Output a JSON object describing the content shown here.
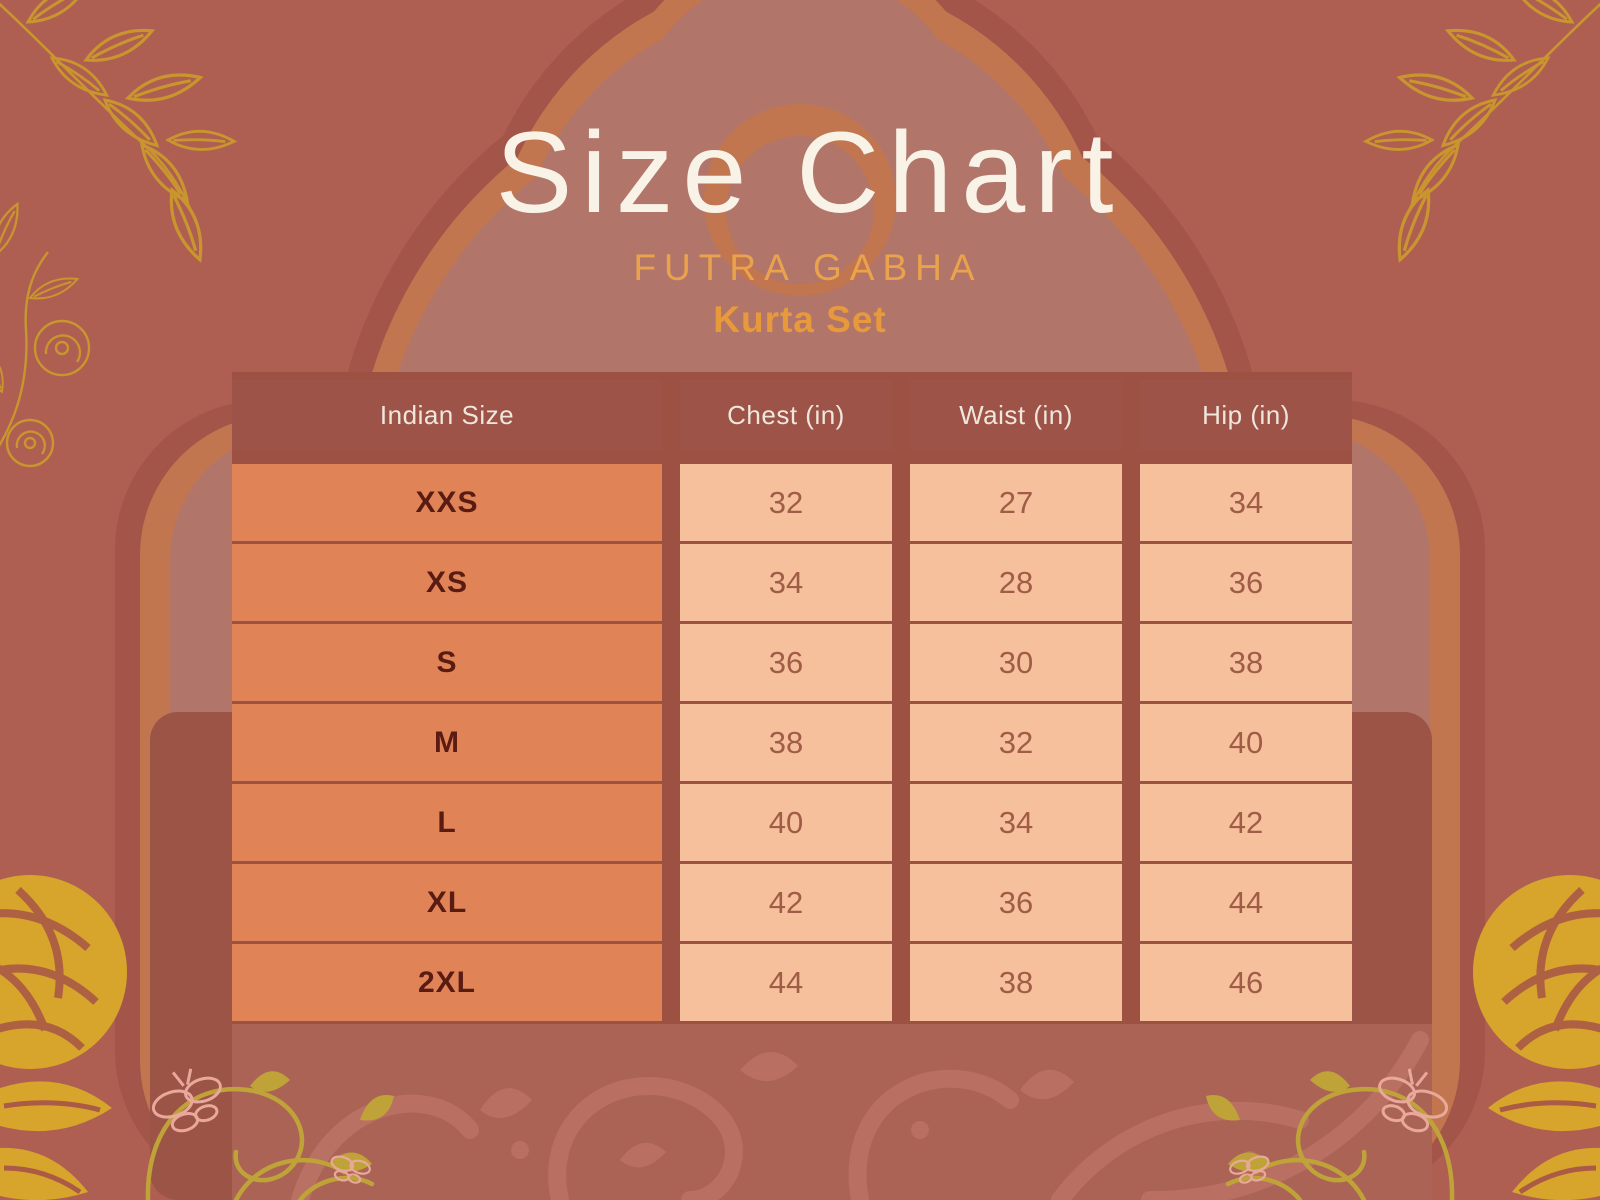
{
  "page": {
    "title": "Size Chart",
    "brand": "FUTRA GABHA",
    "subtitle": "Kurta Set"
  },
  "size_table": {
    "columns": [
      "Indian Size",
      "Chest (in)",
      "Waist (in)",
      "Hip (in)"
    ],
    "rows": [
      {
        "size": "XXS",
        "chest": "32",
        "waist": "27",
        "hip": "34"
      },
      {
        "size": "XS",
        "chest": "34",
        "waist": "28",
        "hip": "36"
      },
      {
        "size": "S",
        "chest": "36",
        "waist": "30",
        "hip": "38"
      },
      {
        "size": "M",
        "chest": "38",
        "waist": "32",
        "hip": "40"
      },
      {
        "size": "L",
        "chest": "40",
        "waist": "34",
        "hip": "42"
      },
      {
        "size": "XL",
        "chest": "42",
        "waist": "36",
        "hip": "44"
      },
      {
        "size": "2XL",
        "chest": "44",
        "waist": "38",
        "hip": "46"
      }
    ]
  },
  "chart_data": {
    "type": "table",
    "title": "Size Chart",
    "brand": "FUTRA GABHA",
    "subtitle": "Kurta Set",
    "columns": [
      "Indian Size",
      "Chest (in)",
      "Waist (in)",
      "Hip (in)"
    ],
    "rows": [
      [
        "XXS",
        "32",
        "27",
        "34"
      ],
      [
        "XS",
        "34",
        "28",
        "36"
      ],
      [
        "S",
        "36",
        "30",
        "38"
      ],
      [
        "M",
        "38",
        "32",
        "40"
      ],
      [
        "L",
        "40",
        "34",
        "42"
      ],
      [
        "XL",
        "42",
        "36",
        "44"
      ],
      [
        "2XL",
        "44",
        "38",
        "46"
      ]
    ]
  },
  "colors": {
    "background": "#AF5E52",
    "arch_maroon": "#A25548",
    "arch_orange": "#C1764F",
    "arch_rose": "#B27569",
    "door_panel": "#9C5446",
    "bottom_panel": "#AB6355",
    "header_bg": "#9D5348",
    "header_text": "#F0E7DC",
    "size_cell_bg": "#E08457",
    "size_cell_text": "#5A1B13",
    "value_cell_bg": "#F7C09C",
    "value_cell_text": "#A05C47",
    "title_text": "#F8F2E7",
    "brand_text": "#EBA24C",
    "subtitle_text": "#E8993B",
    "gold_outline": "#C9952E",
    "gold_foil": "#D7A42C",
    "gold_flourish": "#BFA339",
    "butterfly_pink": "#E8A89B"
  },
  "decorations": [
    "gold-leaf-branch-top-left",
    "gold-leaf-branch-top-right",
    "gold-flower-sprig-left",
    "gold-foil-rose-bottom-left",
    "gold-flourish-butterfly-bottom-left",
    "gold-foil-rose-bottom-right",
    "gold-flourish-butterfly-bottom-right",
    "damask-pattern-bottom"
  ]
}
